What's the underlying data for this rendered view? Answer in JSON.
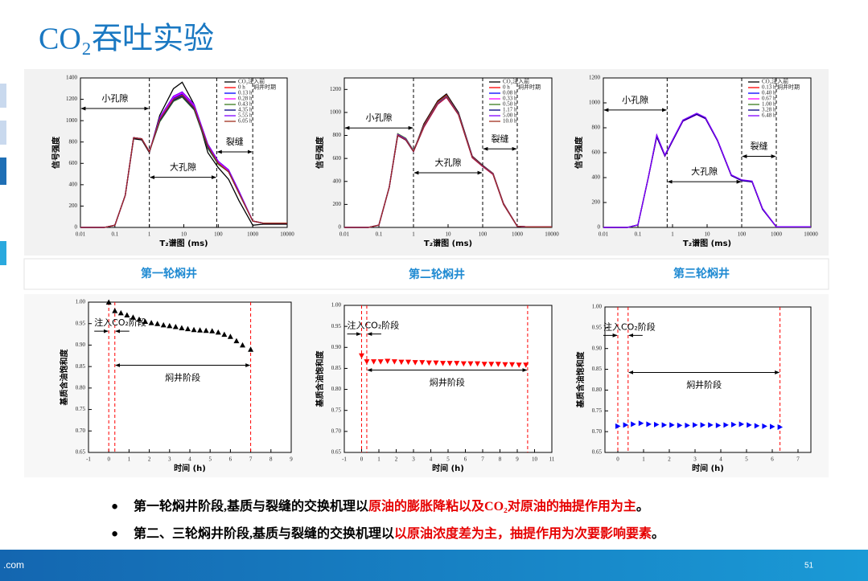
{
  "title": "CO₂吞吐实验",
  "panel_labels": [
    "第一轮焖井",
    "第二轮焖井",
    "第三轮焖井"
  ],
  "bullets": [
    {
      "lead": "第一轮焖井阶段,基质与裂缝的交换机理以",
      "highlight": "原油的膨胀降粘以及CO₂对原油的抽提作用为主",
      "end": "。"
    },
    {
      "lead": "第二、三轮焖井阶段,基质与裂缝的交换机理以",
      "highlight": "以原油浓度差为主，抽提作用为次要影响要素",
      "end": "。"
    }
  ],
  "footer": {
    "site": ".com",
    "page": "51"
  },
  "chart_data": [
    {
      "type": "line",
      "xscale": "log",
      "xlabel": "T₂谱图 (ms)",
      "ylabel": "信号强度",
      "legend_title": "焖井时期",
      "annotations": [
        "小孔隙",
        "大孔隙",
        "裂缝"
      ],
      "boundaries": [
        1,
        90,
        1000
      ],
      "xlim": [
        0.01,
        10000
      ],
      "xticks": [
        0.01,
        0.1,
        1,
        10,
        100,
        1000,
        10000
      ],
      "ylim": [
        0,
        1400
      ],
      "yticks": [
        0,
        200,
        400,
        600,
        800,
        1000,
        1200,
        1400
      ],
      "x": [
        0.01,
        0.05,
        0.1,
        0.2,
        0.35,
        0.6,
        1,
        2,
        5,
        9,
        20,
        50,
        100,
        200,
        400,
        1000,
        2000,
        10000
      ],
      "series": [
        {
          "name": "CO₂注入前",
          "color": "#000000",
          "values": [
            0,
            0,
            20,
            300,
            830,
            820,
            700,
            1050,
            1300,
            1360,
            1150,
            700,
            560,
            450,
            250,
            20,
            30,
            30
          ]
        },
        {
          "name": "0 h",
          "color": "#ff0000",
          "values": [
            0,
            0,
            20,
            300,
            840,
            830,
            710,
            1000,
            1200,
            1240,
            1120,
            760,
            600,
            520,
            320,
            60,
            40,
            40
          ]
        },
        {
          "name": "0.13 h",
          "color": "#0000ff",
          "values": [
            0,
            0,
            20,
            300,
            840,
            830,
            710,
            1010,
            1210,
            1250,
            1130,
            770,
            610,
            530,
            330,
            60,
            40,
            40
          ]
        },
        {
          "name": "0.28 h",
          "color": "#ff00ff",
          "values": [
            0,
            0,
            20,
            300,
            840,
            830,
            710,
            1020,
            1220,
            1260,
            1140,
            770,
            610,
            530,
            330,
            60,
            40,
            40
          ]
        },
        {
          "name": "0.43 h",
          "color": "#3a7d1e",
          "values": [
            0,
            0,
            20,
            300,
            840,
            830,
            710,
            990,
            1180,
            1220,
            1100,
            740,
            590,
            520,
            320,
            60,
            40,
            40
          ]
        },
        {
          "name": "4.35 h",
          "color": "#000080",
          "values": [
            0,
            0,
            20,
            300,
            840,
            830,
            710,
            1000,
            1190,
            1230,
            1110,
            750,
            600,
            520,
            320,
            60,
            40,
            40
          ]
        },
        {
          "name": "5.55 h",
          "color": "#8000ff",
          "values": [
            0,
            0,
            20,
            300,
            840,
            830,
            710,
            1030,
            1230,
            1270,
            1150,
            780,
            620,
            540,
            340,
            60,
            40,
            40
          ]
        },
        {
          "name": "6.05 h",
          "color": "#a0301e",
          "values": [
            0,
            0,
            20,
            300,
            840,
            830,
            710,
            1010,
            1200,
            1240,
            1120,
            760,
            600,
            520,
            320,
            60,
            40,
            40
          ]
        }
      ]
    },
    {
      "type": "line",
      "xscale": "log",
      "xlabel": "T₂谱图 (ms)",
      "ylabel": "信号强度",
      "legend_title": "焖井时期",
      "annotations": [
        "小孔隙",
        "大孔隙",
        "裂缝"
      ],
      "boundaries": [
        1,
        100,
        1000
      ],
      "xlim": [
        0.01,
        10000
      ],
      "xticks": [
        0.01,
        0.1,
        1,
        10,
        100,
        1000,
        10000
      ],
      "ylim": [
        0,
        1300
      ],
      "yticks": [
        0,
        200,
        400,
        600,
        800,
        1000,
        1200
      ],
      "x": [
        0.01,
        0.05,
        0.1,
        0.2,
        0.35,
        0.6,
        1,
        2,
        5,
        9,
        20,
        50,
        100,
        200,
        400,
        1000,
        2000,
        10000
      ],
      "series": [
        {
          "name": "CO₂注入前",
          "color": "#000000",
          "values": [
            0,
            0,
            20,
            350,
            800,
            760,
            660,
            900,
            1100,
            1160,
            1000,
            620,
            540,
            470,
            200,
            10,
            5,
            5
          ]
        },
        {
          "name": "0 h",
          "color": "#ff0000",
          "values": [
            0,
            0,
            20,
            350,
            810,
            770,
            665,
            890,
            1090,
            1150,
            990,
            615,
            535,
            470,
            210,
            10,
            5,
            5
          ]
        },
        {
          "name": "0.08 h",
          "color": "#0000ff",
          "values": [
            0,
            0,
            20,
            350,
            805,
            765,
            662,
            880,
            1080,
            1140,
            985,
            610,
            530,
            465,
            205,
            10,
            5,
            5
          ]
        },
        {
          "name": "0.33 h",
          "color": "#ff00ff",
          "values": [
            0,
            0,
            20,
            350,
            800,
            760,
            660,
            870,
            1070,
            1130,
            980,
            605,
            530,
            460,
            200,
            10,
            5,
            5
          ]
        },
        {
          "name": "0.50 h",
          "color": "#3a7d1e",
          "values": [
            0,
            0,
            20,
            350,
            815,
            775,
            668,
            885,
            1085,
            1145,
            990,
            612,
            535,
            468,
            208,
            10,
            5,
            5
          ]
        },
        {
          "name": "1.17 h",
          "color": "#000080",
          "values": [
            0,
            0,
            20,
            350,
            800,
            760,
            660,
            875,
            1075,
            1135,
            982,
            608,
            532,
            462,
            202,
            10,
            5,
            5
          ]
        },
        {
          "name": "5.00 h",
          "color": "#8000ff",
          "values": [
            0,
            0,
            20,
            350,
            808,
            768,
            664,
            878,
            1078,
            1138,
            985,
            610,
            533,
            465,
            205,
            10,
            5,
            5
          ]
        },
        {
          "name": "10.0 h",
          "color": "#a0301e",
          "values": [
            0,
            0,
            20,
            350,
            802,
            762,
            661,
            872,
            1072,
            1132,
            980,
            606,
            531,
            461,
            201,
            10,
            5,
            5
          ]
        }
      ]
    },
    {
      "type": "line",
      "xscale": "log",
      "xlabel": "T₂谱图 (ms)",
      "ylabel": "信号强度",
      "legend_title": "焖井时期",
      "annotations": [
        "小孔隙",
        "大孔隙",
        "裂缝"
      ],
      "boundaries": [
        0.7,
        100,
        1000
      ],
      "xlim": [
        0.01,
        10000
      ],
      "xticks": [
        0.01,
        0.1,
        1,
        10,
        100,
        1000,
        10000
      ],
      "ylim": [
        0,
        1200
      ],
      "yticks": [
        0,
        200,
        400,
        600,
        800,
        1000,
        1200
      ],
      "x": [
        0.01,
        0.05,
        0.1,
        0.2,
        0.35,
        0.6,
        1,
        2,
        5,
        9,
        20,
        50,
        100,
        200,
        400,
        1000,
        2000,
        10000
      ],
      "series": [
        {
          "name": "CO₂注入前",
          "color": "#000000",
          "values": [
            0,
            0,
            20,
            400,
            740,
            580,
            700,
            860,
            915,
            880,
            700,
            420,
            380,
            370,
            150,
            5,
            5,
            5
          ]
        },
        {
          "name": "0.13 h",
          "color": "#ff0000",
          "values": [
            0,
            0,
            20,
            400,
            730,
            575,
            695,
            855,
            910,
            875,
            698,
            418,
            378,
            368,
            148,
            5,
            5,
            5
          ]
        },
        {
          "name": "0.40 h",
          "color": "#0000ff",
          "values": [
            0,
            0,
            20,
            400,
            735,
            578,
            698,
            858,
            912,
            878,
            699,
            419,
            379,
            369,
            149,
            5,
            5,
            5
          ]
        },
        {
          "name": "0.67 h",
          "color": "#ff00ff",
          "values": [
            0,
            0,
            20,
            400,
            725,
            572,
            692,
            852,
            905,
            872,
            695,
            415,
            375,
            365,
            145,
            5,
            5,
            5
          ]
        },
        {
          "name": "1.00 h",
          "color": "#3a7d1e",
          "values": [
            0,
            0,
            20,
            400,
            738,
            580,
            700,
            860,
            914,
            879,
            700,
            420,
            380,
            370,
            150,
            5,
            5,
            5
          ]
        },
        {
          "name": "3.28 h",
          "color": "#000080",
          "values": [
            0,
            0,
            20,
            400,
            728,
            574,
            694,
            854,
            908,
            874,
            696,
            416,
            376,
            366,
            146,
            5,
            5,
            5
          ]
        },
        {
          "name": "6.48 h",
          "color": "#8000ff",
          "values": [
            0,
            0,
            20,
            400,
            742,
            582,
            702,
            862,
            916,
            882,
            702,
            422,
            382,
            372,
            152,
            5,
            5,
            5
          ]
        }
      ]
    },
    {
      "type": "scatter",
      "marker": "triangle-up",
      "color": "#000000",
      "xlabel": "时间 (h)",
      "ylabel": "基质含油饱和度",
      "annotations": [
        "注入CO₂阶段",
        "焖井阶段"
      ],
      "boundaries": [
        0,
        0.3,
        7
      ],
      "boundary_color": "#ff0000",
      "xlim": [
        -1,
        9
      ],
      "xticks": [
        -1,
        0,
        1,
        2,
        3,
        4,
        5,
        6,
        7,
        8,
        9
      ],
      "ylim": [
        0.65,
        1.0
      ],
      "yticks": [
        {
          "value": 0.65,
          "label": "0.65"
        },
        {
          "value": 0.7,
          "label": "0.70"
        },
        {
          "value": 0.75,
          "label": "0.75"
        },
        {
          "value": 0.8,
          "label": "0.80"
        },
        {
          "value": 0.85,
          "label": "0.85"
        },
        {
          "value": 0.9,
          "label": "0.90"
        },
        {
          "value": 0.95,
          "label": "0.95"
        },
        {
          "value": 1.0,
          "label": "1.00"
        }
      ],
      "x": [
        0,
        0.3,
        0.6,
        0.9,
        1.2,
        1.5,
        1.8,
        2.1,
        2.4,
        2.7,
        3.0,
        3.3,
        3.6,
        3.9,
        4.2,
        4.5,
        4.8,
        5.1,
        5.4,
        5.7,
        6.0,
        6.3,
        6.6,
        7.0
      ],
      "values": [
        1.0,
        0.98,
        0.975,
        0.97,
        0.965,
        0.96,
        0.955,
        0.952,
        0.95,
        0.947,
        0.945,
        0.943,
        0.94,
        0.938,
        0.936,
        0.935,
        0.934,
        0.933,
        0.93,
        0.925,
        0.92,
        0.91,
        0.9,
        0.89
      ]
    },
    {
      "type": "scatter",
      "marker": "triangle-down",
      "color": "#ff0000",
      "xlabel": "时间 (h)",
      "ylabel": "基质含油饱和度",
      "annotations": [
        "注入CO₂阶段",
        "焖井阶段"
      ],
      "boundaries": [
        0,
        0.3,
        9.6
      ],
      "boundary_color": "#ff0000",
      "xlim": [
        -1,
        11
      ],
      "xticks": [
        -1,
        0,
        1,
        2,
        3,
        4,
        5,
        6,
        7,
        8,
        9,
        10,
        11
      ],
      "ylim": [
        0.65,
        1.0
      ],
      "yticks": [
        {
          "value": 0.65,
          "label": "0.65"
        },
        {
          "value": 0.7,
          "label": "0.70"
        },
        {
          "value": 0.75,
          "label": "0.75"
        },
        {
          "value": 0.8,
          "label": "0.80"
        },
        {
          "value": 0.85,
          "label": "0.85"
        },
        {
          "value": 0.9,
          "label": "0.90"
        },
        {
          "value": 0.95,
          "label": "0.95"
        },
        {
          "value": 1.0,
          "label": "1.00"
        }
      ],
      "x": [
        0,
        0.3,
        0.7,
        1.1,
        1.5,
        1.9,
        2.3,
        2.7,
        3.1,
        3.5,
        3.9,
        4.3,
        4.7,
        5.1,
        5.5,
        5.9,
        6.3,
        6.7,
        7.1,
        7.5,
        7.9,
        8.3,
        8.7,
        9.1,
        9.5
      ],
      "values": [
        0.88,
        0.866,
        0.866,
        0.866,
        0.867,
        0.866,
        0.865,
        0.865,
        0.864,
        0.864,
        0.863,
        0.863,
        0.862,
        0.862,
        0.862,
        0.861,
        0.861,
        0.861,
        0.86,
        0.86,
        0.86,
        0.859,
        0.859,
        0.858,
        0.858
      ]
    },
    {
      "type": "scatter",
      "marker": "triangle-right",
      "color": "#0000ff",
      "xlabel": "时间 (h)",
      "ylabel": "基质含油饱和度",
      "annotations": [
        "注入CO₂阶段",
        "焖井阶段"
      ],
      "boundaries": [
        0,
        0.4,
        6.3
      ],
      "boundary_color": "#ff0000",
      "xlim": [
        -0.5,
        7.5
      ],
      "xticks": [
        0,
        1,
        2,
        3,
        4,
        5,
        6,
        7
      ],
      "ylim": [
        0.65,
        1.0
      ],
      "yticks": [
        {
          "value": 0.65,
          "label": "0.65"
        },
        {
          "value": 0.7,
          "label": "0.70"
        },
        {
          "value": 0.75,
          "label": "0.75"
        },
        {
          "value": 0.8,
          "label": "0.80"
        },
        {
          "value": 0.85,
          "label": "0.85"
        },
        {
          "value": 0.9,
          "label": "0.90"
        },
        {
          "value": 0.95,
          "label": "0.95"
        },
        {
          "value": 1.0,
          "label": "1.00"
        }
      ],
      "x": [
        0,
        0.3,
        0.6,
        0.9,
        1.2,
        1.5,
        1.8,
        2.1,
        2.4,
        2.7,
        3.0,
        3.3,
        3.6,
        3.9,
        4.2,
        4.5,
        4.8,
        5.1,
        5.4,
        5.7,
        6.0,
        6.3
      ],
      "values": [
        0.713,
        0.716,
        0.718,
        0.72,
        0.718,
        0.717,
        0.716,
        0.716,
        0.715,
        0.715,
        0.716,
        0.716,
        0.716,
        0.715,
        0.716,
        0.717,
        0.718,
        0.716,
        0.714,
        0.713,
        0.712,
        0.711
      ]
    }
  ]
}
